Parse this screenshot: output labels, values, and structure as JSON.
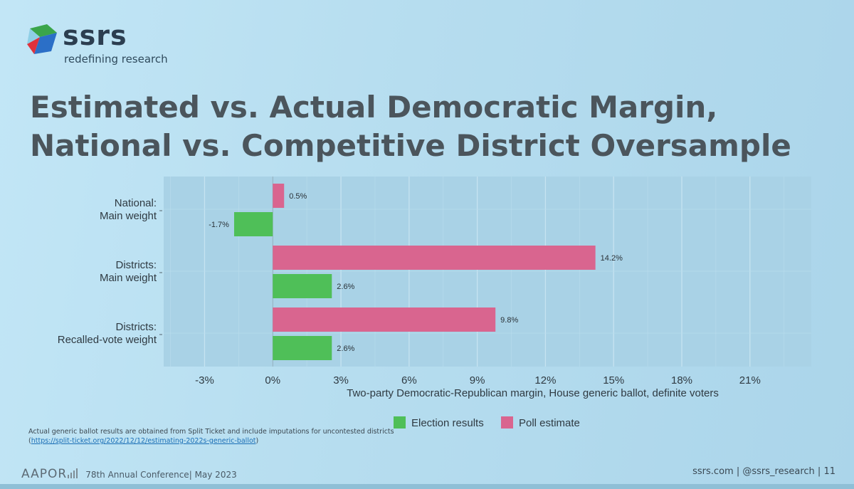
{
  "brand": {
    "name": "ssrs",
    "tagline": "redefining research",
    "icon": "ssrs-logo-mark",
    "colors": {
      "red": "#e0323c",
      "blue": "#2b6fc7",
      "green": "#3aa54a",
      "dark": "#2c3e50"
    }
  },
  "title": {
    "line1": "Estimated vs. Actual Democratic Margin,",
    "line2": "National vs. Competitive District Oversample"
  },
  "chart_data": {
    "type": "bar",
    "orientation": "horizontal",
    "categories": [
      [
        "National:",
        "Main weight"
      ],
      [
        "Districts:",
        "Main weight"
      ],
      [
        "Districts:",
        "Recalled-vote weight"
      ]
    ],
    "series": [
      {
        "name": "Poll estimate",
        "color": "#d9658f",
        "values": [
          0.5,
          14.2,
          9.8
        ],
        "labels": [
          "0.5%",
          "14.2%",
          "9.8%"
        ]
      },
      {
        "name": "Election results",
        "color": "#4fbf58",
        "values": [
          -1.7,
          2.6,
          2.6
        ],
        "labels": [
          "-1.7%",
          "2.6%",
          "2.6%"
        ]
      }
    ],
    "xlabel": "Two-party Democratic-Republican margin, House generic ballot, definite voters",
    "xlim": [
      -4.8,
      23.7
    ],
    "xticks": [
      -3,
      0,
      3,
      6,
      9,
      12,
      15,
      18,
      21
    ],
    "xtick_labels": [
      "-3%",
      "0%",
      "3%",
      "6%",
      "9%",
      "12%",
      "15%",
      "18%",
      "21%"
    ],
    "grid": true,
    "legend": {
      "placement": "bottom",
      "entries": [
        {
          "name": "Election results",
          "color": "#4fbf58"
        },
        {
          "name": "Poll estimate",
          "color": "#d9658f"
        }
      ]
    }
  },
  "footnote": {
    "text": "Actual generic ballot results are obtained from Split Ticket and include imputations for uncontested districts",
    "link_open": "(",
    "link": "https://split-ticket.org/2022/12/12/estimating-2022s-generic-ballot",
    "link_close": ")"
  },
  "footer": {
    "org": "AAPOR",
    "conference": "78th Annual Conference",
    "separator": "|",
    "date": "May 2023",
    "website": "ssrs.com",
    "handle": "@ssrs_research",
    "page": "11"
  }
}
